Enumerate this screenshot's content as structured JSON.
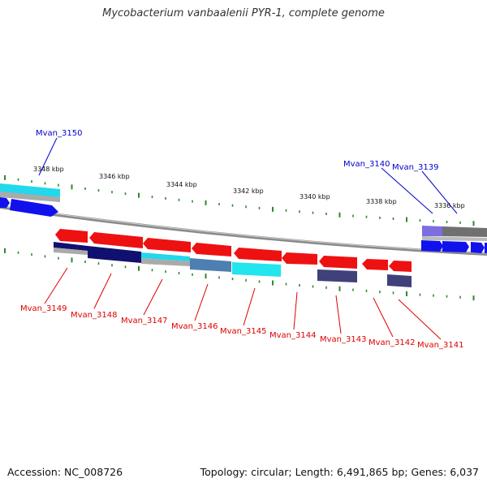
{
  "title": "Mycobacterium vanbaalenii PYR-1, complete genome",
  "footer": {
    "accession": "Accession: NC_008726",
    "topology": "Topology: circular; Length: 6,491,865 bp; Genes: 6,037"
  },
  "colors": {
    "forward_gene_label": "#0000cc",
    "reverse_gene_label": "#dd0000",
    "tick": "#2a8a2a",
    "backbone": "#888888",
    "gene_red": "#ee1111",
    "gene_blue": "#1111ee",
    "gene_navy": "#101070",
    "gene_steel": "#4d7fb0",
    "gene_cyan": "#22e5ee",
    "gene_slate": "#40407a",
    "gene_purple": "#7c6ee0",
    "gene_gray": "#777777"
  },
  "scale_labels": [
    "3348 kbp",
    "3346 kbp",
    "3344 kbp",
    "3342 kbp",
    "3340 kbp",
    "3338 kbp",
    "3336 kbp"
  ],
  "forward_gene_labels": [
    "Mvan_3150",
    "Mvan_3140",
    "Mvan_3139"
  ],
  "reverse_gene_labels": [
    "Mvan_3149",
    "Mvan_3148",
    "Mvan_3147",
    "Mvan_3146",
    "Mvan_3145",
    "Mvan_3144",
    "Mvan_3143",
    "Mvan_3142",
    "Mvan_3141"
  ]
}
